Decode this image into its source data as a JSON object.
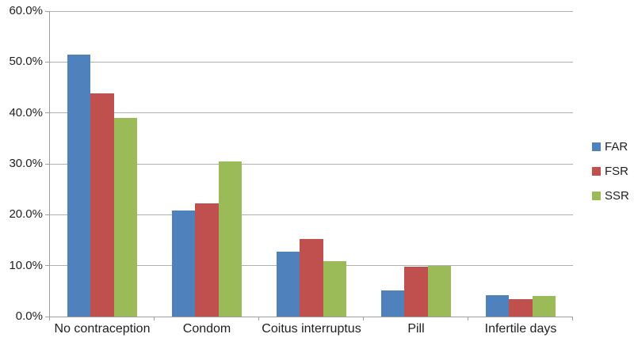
{
  "chart": {
    "background_color": "#ffffff",
    "gridline_color": "#aab0b6",
    "axis_color": "#9aa0a6",
    "text_color": "#1f1f1f",
    "legend_position": "right"
  },
  "chart_data": {
    "type": "bar",
    "title": "",
    "xlabel": "",
    "ylabel": "",
    "categories": [
      "No contraception",
      "Condom",
      "Coitus interruptus",
      "Pill",
      "Infertile days"
    ],
    "series": [
      {
        "name": "FAR",
        "color": "#4f81bd",
        "values": [
          51.4,
          20.8,
          12.8,
          5.1,
          4.2
        ]
      },
      {
        "name": "FSR",
        "color": "#c0504d",
        "values": [
          43.9,
          22.2,
          15.3,
          9.8,
          3.4
        ]
      },
      {
        "name": "SSR",
        "color": "#9bbb59",
        "values": [
          39.0,
          30.4,
          10.9,
          10.0,
          4.0
        ]
      }
    ],
    "ylim": [
      0,
      60
    ],
    "yticks": [
      {
        "value": 0,
        "label": "0.0%"
      },
      {
        "value": 10,
        "label": "10.0%"
      },
      {
        "value": 20,
        "label": "20.0%"
      },
      {
        "value": 30,
        "label": "30.0%"
      },
      {
        "value": 40,
        "label": "40.0%"
      },
      {
        "value": 50,
        "label": "50.0%"
      },
      {
        "value": 60,
        "label": "60.0%"
      }
    ],
    "grid": true,
    "legend": [
      "FAR",
      "FSR",
      "SSR"
    ]
  }
}
